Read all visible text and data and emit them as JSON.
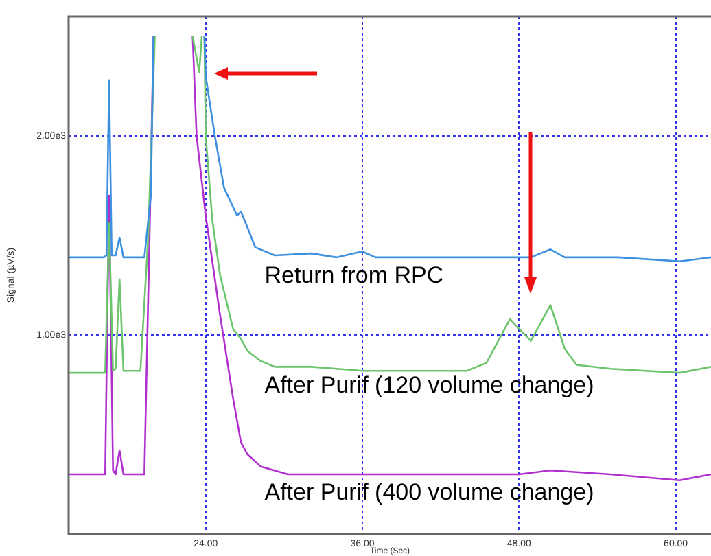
{
  "chart_data": {
    "type": "line",
    "xlabel": "Time (Sec)",
    "ylabel": "Signal (µV/s)",
    "xlim": [
      13.5,
      62.7
    ],
    "xticks": [
      {
        "value": 24,
        "label": "24.00"
      },
      {
        "value": 36,
        "label": "36.00"
      },
      {
        "value": 48,
        "label": "48.00"
      },
      {
        "value": 60,
        "label": "60.00"
      }
    ],
    "ylim": [
      0,
      2600
    ],
    "yticks": [
      {
        "value": 1000,
        "label": "1.00e3"
      },
      {
        "value": 2000,
        "label": "2.00e3"
      }
    ],
    "grid": true,
    "legend": false,
    "marker": "none",
    "line_style": "solid",
    "series": [
      {
        "name": "Return from RPC",
        "color": "#3d8fe0",
        "x": [
          13.5,
          16.2,
          16.4,
          16.6,
          16.8,
          17.1,
          17.4,
          17.7,
          19.3,
          19.8,
          20.0,
          20.1,
          23.8,
          23.9,
          24.0,
          24.7,
          25.4,
          26.4,
          26.7,
          27.2,
          27.8,
          29.3,
          32.1,
          34,
          36,
          37,
          45,
          48.9,
          50.4,
          51.5,
          55.6,
          60.3,
          62.7
        ],
        "values": [
          1390,
          1390,
          1400,
          2280,
          1400,
          1400,
          1490,
          1390,
          1390,
          1700,
          2500,
          null,
          null,
          2500,
          2300,
          2000,
          1740,
          1600,
          1620,
          1540,
          1440,
          1400,
          1410,
          1390,
          1420,
          1390,
          1390,
          1390,
          1430,
          1390,
          1390,
          1370,
          1390
        ]
      },
      {
        "name": "After Purif (120 volume change)",
        "color": "#6cc46c",
        "x": [
          13.5,
          16.3,
          16.6,
          16.9,
          17.1,
          17.4,
          17.7,
          19.0,
          19.6,
          20.1,
          20.2,
          22.9,
          23.0,
          23.5,
          23.7,
          23.8,
          23.9,
          24.0,
          24.5,
          25.1,
          26.1,
          26.7,
          27.2,
          28.2,
          29.3,
          32.1,
          36,
          44,
          45.5,
          47.3,
          48.9,
          50.4,
          51.5,
          52.4,
          55,
          60.3,
          62.7
        ],
        "values": [
          810,
          810,
          1560,
          820,
          830,
          1280,
          820,
          820,
          1500,
          2500,
          null,
          null,
          2500,
          2320,
          2500,
          null,
          2500,
          2000,
          1580,
          1300,
          1030,
          980,
          920,
          870,
          840,
          840,
          820,
          820,
          860,
          1080,
          970,
          1150,
          930,
          850,
          830,
          810,
          840
        ]
      },
      {
        "name": "After Purif (400 volume change)",
        "color": "#b12fcf",
        "x": [
          13.5,
          16.3,
          16.6,
          16.9,
          17.1,
          17.4,
          17.7,
          19.3,
          19.7,
          20.0,
          20.1,
          22.9,
          23.0,
          23.3,
          24.0,
          25.1,
          26.1,
          26.7,
          27.2,
          28.2,
          30.3,
          36,
          48,
          50.4,
          55,
          60.3,
          62.7
        ],
        "values": [
          300,
          300,
          1700,
          320,
          300,
          420,
          300,
          300,
          1500,
          2500,
          null,
          null,
          2500,
          2000,
          1600,
          1100,
          680,
          460,
          400,
          340,
          300,
          300,
          300,
          320,
          300,
          270,
          300
        ]
      }
    ]
  }
}
